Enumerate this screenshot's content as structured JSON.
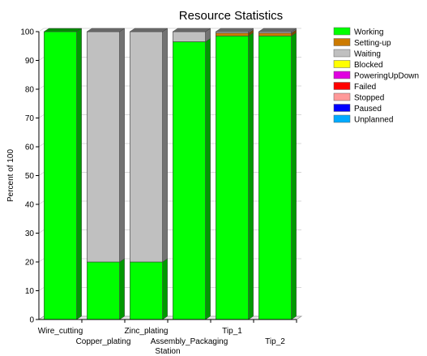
{
  "chart_data": {
    "type": "bar",
    "stacked": true,
    "three_d": true,
    "title": "Resource Statistics",
    "xlabel": "Station",
    "ylabel": "Percent of 100",
    "ylim": [
      0,
      100
    ],
    "yticks": [
      0,
      10,
      20,
      30,
      40,
      50,
      60,
      70,
      80,
      90,
      100
    ],
    "grid": true,
    "legend_position": "right",
    "categories": [
      "Wire_cutting",
      "Copper_plating",
      "Zinc_plating",
      "Assembly_Packaging",
      "Tip_1",
      "Tip_2"
    ],
    "series": [
      {
        "name": "Working",
        "color": "#00ff00",
        "values": [
          100,
          20,
          20,
          96.5,
          98.5,
          98.5
        ]
      },
      {
        "name": "Setting-up",
        "color": "#cc7a00",
        "values": [
          0,
          0,
          0,
          0,
          1.0,
          1.0
        ]
      },
      {
        "name": "Waiting",
        "color": "#c0c0c0",
        "values": [
          0,
          80,
          80,
          3.5,
          0.5,
          0.5
        ]
      },
      {
        "name": "Blocked",
        "color": "#ffff00",
        "values": [
          0,
          0,
          0,
          0,
          0,
          0
        ]
      },
      {
        "name": "PoweringUpDown",
        "color": "#e000e0",
        "values": [
          0,
          0,
          0,
          0,
          0,
          0
        ]
      },
      {
        "name": "Failed",
        "color": "#ff0000",
        "values": [
          0,
          0,
          0,
          0,
          0,
          0
        ]
      },
      {
        "name": "Stopped",
        "color": "#ff9999",
        "values": [
          0,
          0,
          0,
          0,
          0,
          0
        ]
      },
      {
        "name": "Paused",
        "color": "#0000ff",
        "values": [
          0,
          0,
          0,
          0,
          0,
          0
        ]
      },
      {
        "name": "Unplanned",
        "color": "#00aaff",
        "values": [
          0,
          0,
          0,
          0,
          0,
          0
        ]
      }
    ]
  }
}
